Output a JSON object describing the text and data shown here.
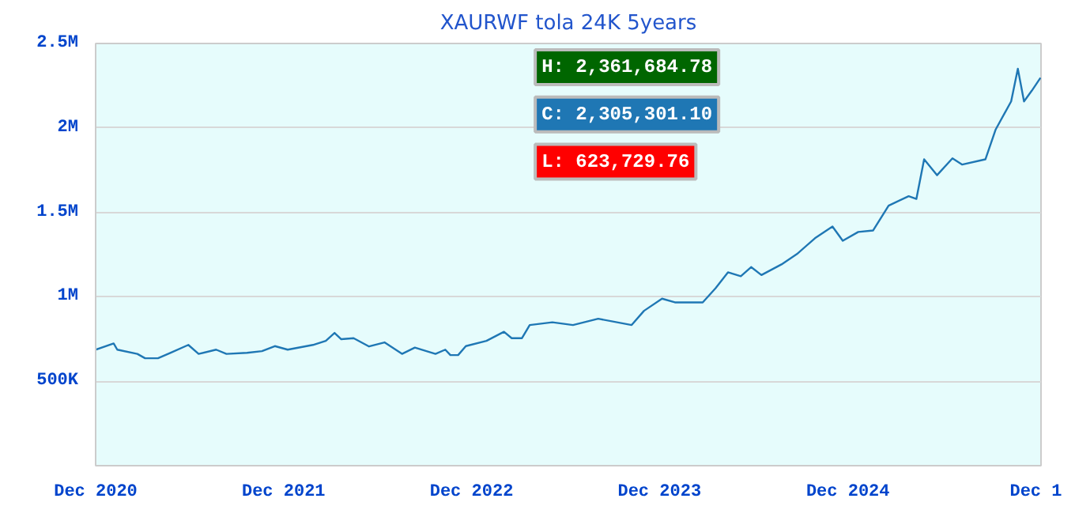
{
  "chart_data": {
    "type": "line",
    "title": "XAURWF tola 24K 5years",
    "x": [
      "2020-12-01",
      "2021-01-05",
      "2021-01-12",
      "2021-02-20",
      "2021-03-07",
      "2021-04-01",
      "2021-04-25",
      "2021-05-30",
      "2021-06-19",
      "2021-07-23",
      "2021-08-12",
      "2021-09-21",
      "2021-10-20",
      "2021-11-14",
      "2021-12-09",
      "2022-01-27",
      "2022-02-21",
      "2022-03-10",
      "2022-03-23",
      "2022-04-16",
      "2022-05-16",
      "2022-06-15",
      "2022-07-19",
      "2022-08-13",
      "2022-09-22",
      "2022-10-11",
      "2022-10-21",
      "2022-11-05",
      "2022-11-20",
      "2022-12-30",
      "2023-02-02",
      "2023-02-17",
      "2023-03-09",
      "2023-03-24",
      "2023-05-07",
      "2023-06-16",
      "2023-08-04",
      "2023-10-08",
      "2023-11-01",
      "2023-12-06",
      "2023-12-31",
      "2024-02-23",
      "2024-03-19",
      "2024-04-12",
      "2024-05-07",
      "2024-05-27",
      "2024-06-16",
      "2024-07-25",
      "2024-08-24",
      "2024-09-28",
      "2024-11-01",
      "2024-11-21",
      "2024-12-21",
      "2025-01-19",
      "2025-02-18",
      "2025-03-29",
      "2025-04-13",
      "2025-04-28",
      "2025-05-23",
      "2025-06-22",
      "2025-07-11",
      "2025-08-25",
      "2025-09-14",
      "2025-10-14",
      "2025-10-27",
      "2025-11-08",
      "2025-11-23",
      "2025-12-10"
    ],
    "series": [
      {
        "color": "#1f77b4",
        "values": [
          687000,
          724000,
          687000,
          662000,
          636000,
          636000,
          668000,
          715000,
          662000,
          687000,
          662000,
          668000,
          678000,
          708000,
          687000,
          715000,
          739000,
          786000,
          749000,
          755000,
          706000,
          730000,
          662000,
          699000,
          662000,
          687000,
          655000,
          655000,
          708000,
          739000,
          793000,
          755000,
          755000,
          833000,
          849000,
          833000,
          870000,
          833000,
          917000,
          989000,
          967000,
          967000,
          1051000,
          1145000,
          1122000,
          1176000,
          1129000,
          1192000,
          1253000,
          1347000,
          1416000,
          1332000,
          1384000,
          1393000,
          1540000,
          1596000,
          1580000,
          1814000,
          1720000,
          1820000,
          1783000,
          1814000,
          1991000,
          2157000,
          2350000,
          2157000,
          2220000,
          2297000
        ]
      }
    ],
    "xlim": [
      "2020-12-01",
      "2025-12-11"
    ],
    "xticks": [
      {
        "value": "2020-12-01",
        "label": "Dec 2020"
      },
      {
        "value": "2021-12-01",
        "label": "Dec 2021"
      },
      {
        "value": "2022-12-01",
        "label": "Dec 2022"
      },
      {
        "value": "2023-12-01",
        "label": "Dec 2023"
      },
      {
        "value": "2024-12-01",
        "label": "Dec 2024"
      },
      {
        "value": "2025-12-01",
        "label": "Dec 1"
      }
    ],
    "ylim": [
      0,
      2500000
    ],
    "yticks": [
      {
        "value": 500000,
        "label": "500K"
      },
      {
        "value": 1000000,
        "label": "1M"
      },
      {
        "value": 1500000,
        "label": "1.5M"
      },
      {
        "value": 2000000,
        "label": "2M"
      },
      {
        "value": 2500000,
        "label": "2.5M"
      }
    ],
    "grid": "y",
    "line_style": "solid",
    "annotations": [
      "H: 2,361,684.78",
      "C: 2,305,301.10",
      "L: 623,729.76"
    ]
  }
}
